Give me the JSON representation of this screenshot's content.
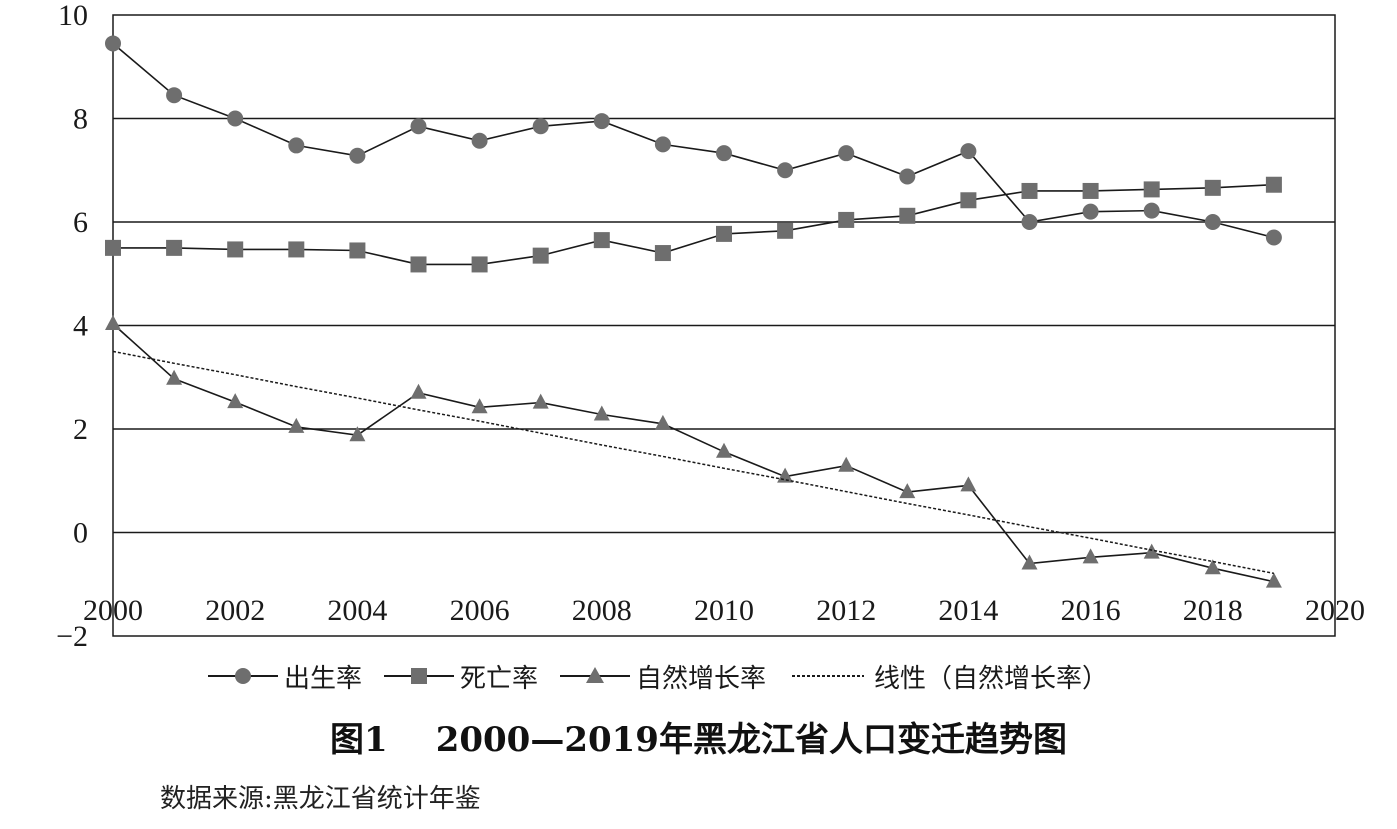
{
  "chart_data": {
    "type": "line",
    "x": [
      2000,
      2001,
      2002,
      2003,
      2004,
      2005,
      2006,
      2007,
      2008,
      2009,
      2010,
      2011,
      2012,
      2013,
      2014,
      2015,
      2016,
      2017,
      2018,
      2019
    ],
    "xlim": [
      2000,
      2020
    ],
    "ylim": [
      -2,
      10
    ],
    "x_ticks": [
      "2000",
      "2002",
      "2004",
      "2006",
      "2008",
      "2010",
      "2012",
      "2014",
      "2016",
      "2018",
      "2020"
    ],
    "y_ticks": [
      "10",
      "8",
      "6",
      "4",
      "2",
      "0",
      "−2"
    ],
    "grid": "horizontal",
    "legend_position": "bottom",
    "series": [
      {
        "name": "出生率",
        "marker": "circle",
        "values": [
          9.45,
          8.45,
          8.0,
          7.48,
          7.28,
          7.85,
          7.57,
          7.85,
          7.95,
          7.5,
          7.33,
          7.0,
          7.33,
          6.88,
          7.37,
          6.0,
          6.2,
          6.22,
          6.0,
          5.7
        ]
      },
      {
        "name": "死亡率",
        "marker": "square",
        "values": [
          5.5,
          5.5,
          5.47,
          5.47,
          5.45,
          5.18,
          5.18,
          5.35,
          5.65,
          5.4,
          5.77,
          5.83,
          6.04,
          6.12,
          6.42,
          6.6,
          6.6,
          6.63,
          6.66,
          6.72
        ]
      },
      {
        "name": "自然增长率",
        "marker": "triangle",
        "values": [
          4.03,
          2.97,
          2.52,
          2.04,
          1.88,
          2.7,
          2.42,
          2.51,
          2.28,
          2.1,
          1.56,
          1.08,
          1.29,
          0.78,
          0.91,
          -0.6,
          -0.48,
          -0.39,
          -0.69,
          -0.95
        ]
      },
      {
        "name": "线性（自然增长率）",
        "marker": "none",
        "dashed": true,
        "values": [
          3.5,
          3.27,
          3.05,
          2.82,
          2.6,
          2.37,
          2.15,
          1.92,
          1.69,
          1.47,
          1.24,
          1.02,
          0.79,
          0.56,
          0.34,
          0.11,
          -0.11,
          -0.34,
          -0.56,
          -0.79
        ]
      }
    ]
  },
  "legend": {
    "birth": "出生率",
    "death": "死亡率",
    "natural": "自然增长率",
    "trend": "线性（自然增长率）"
  },
  "caption": {
    "figure_no": "图1",
    "title": "2000—2019年黑龙江省人口变迁趋势图"
  },
  "source": "数据来源:黑龙江省统计年鉴",
  "colors": {
    "series": "#6e6e6e",
    "line": "#1a1a1a",
    "grid": "#1a1a1a"
  }
}
